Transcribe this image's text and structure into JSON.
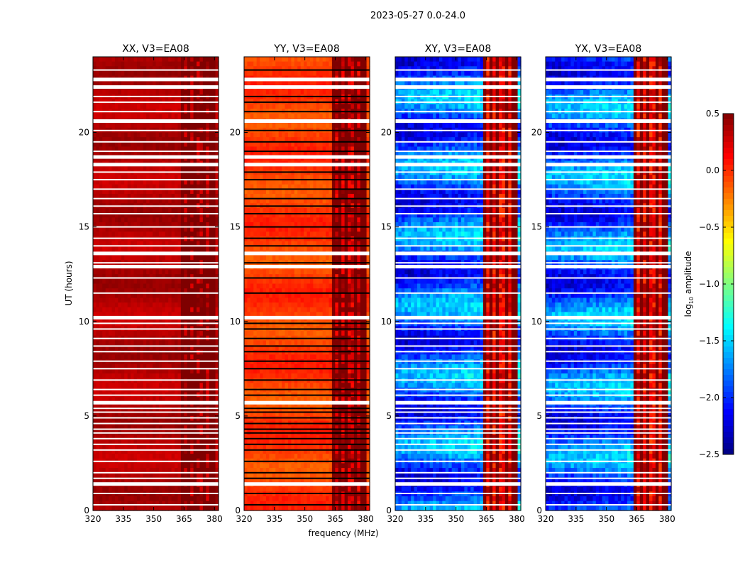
{
  "figure": {
    "suptitle": "2023-05-27 0.0-24.0",
    "xlabel": "frequency (MHz)",
    "ylabel": "UT (hours)",
    "colorbar_label_main": "log",
    "colorbar_label_sub": "10",
    "colorbar_label_tail": " amplitude"
  },
  "chart_data": {
    "type": "heatmap",
    "xlim": [
      320,
      382
    ],
    "ylim": [
      0,
      24
    ],
    "x_ticks": [
      320,
      335,
      350,
      365,
      380
    ],
    "x_tick_labels": [
      "320",
      "335",
      "350",
      "365",
      "380"
    ],
    "y_ticks": [
      0,
      5,
      10,
      15,
      20
    ],
    "y_tick_labels": [
      "0",
      "5",
      "10",
      "15",
      "20"
    ],
    "colorbar": {
      "range": [
        -2.5,
        0.5
      ],
      "ticks": [
        0.5,
        0.0,
        -0.5,
        -1.0,
        -1.5,
        -2.0,
        -2.5
      ],
      "tick_labels": [
        "0.5",
        "0.0",
        "−0.5",
        "−1.0",
        "−1.5",
        "−2.0",
        "−2.5"
      ],
      "colormap": [
        "#00007f",
        "#0000ff",
        "#007fff",
        "#00ffff",
        "#7fff7f",
        "#ffff00",
        "#ff7f00",
        "#ff0000",
        "#7f0000"
      ]
    },
    "rfi_band_mhz": [
      363,
      381
    ],
    "rfi_channels_mhz": [
      364,
      367.5,
      371,
      375,
      379
    ],
    "flagged_gaps_hours": [
      1.4,
      5.7,
      10.2,
      12.9,
      13.6,
      18.3,
      18.7,
      20.6,
      22.4,
      22.8
    ],
    "thin_gaps_hours": [
      0.3,
      0.9,
      1.7,
      2.0,
      2.6,
      3.2,
      3.5,
      3.8,
      4.1,
      4.3,
      4.6,
      4.9,
      5.2,
      5.4,
      6.1,
      6.4,
      6.9,
      7.5,
      7.9,
      8.4,
      8.7,
      9.1,
      9.6,
      9.9,
      11.5,
      12.3,
      13.1,
      14.0,
      14.4,
      15.0,
      15.7,
      16.1,
      16.5,
      17.0,
      17.5,
      17.9,
      19.0,
      19.5,
      20.1,
      21.1,
      21.6,
      21.9,
      23.3
    ],
    "panels": [
      {
        "title": "XX, V3=EA08",
        "base_level": 0.35,
        "rfi_level": 0.45,
        "variation": 0.08,
        "colorbar_shared": true
      },
      {
        "title": "YY, V3=EA08",
        "base_level": -0.05,
        "rfi_level": 0.3,
        "variation": 0.1,
        "colorbar_shared": true
      },
      {
        "title": "XY, V3=EA08",
        "base_level": -1.85,
        "rfi_level": 0.15,
        "variation": 0.35,
        "colorbar_shared": true
      },
      {
        "title": "YX, V3=EA08",
        "base_level": -1.85,
        "rfi_level": 0.15,
        "variation": 0.35,
        "colorbar_shared": true
      }
    ]
  }
}
